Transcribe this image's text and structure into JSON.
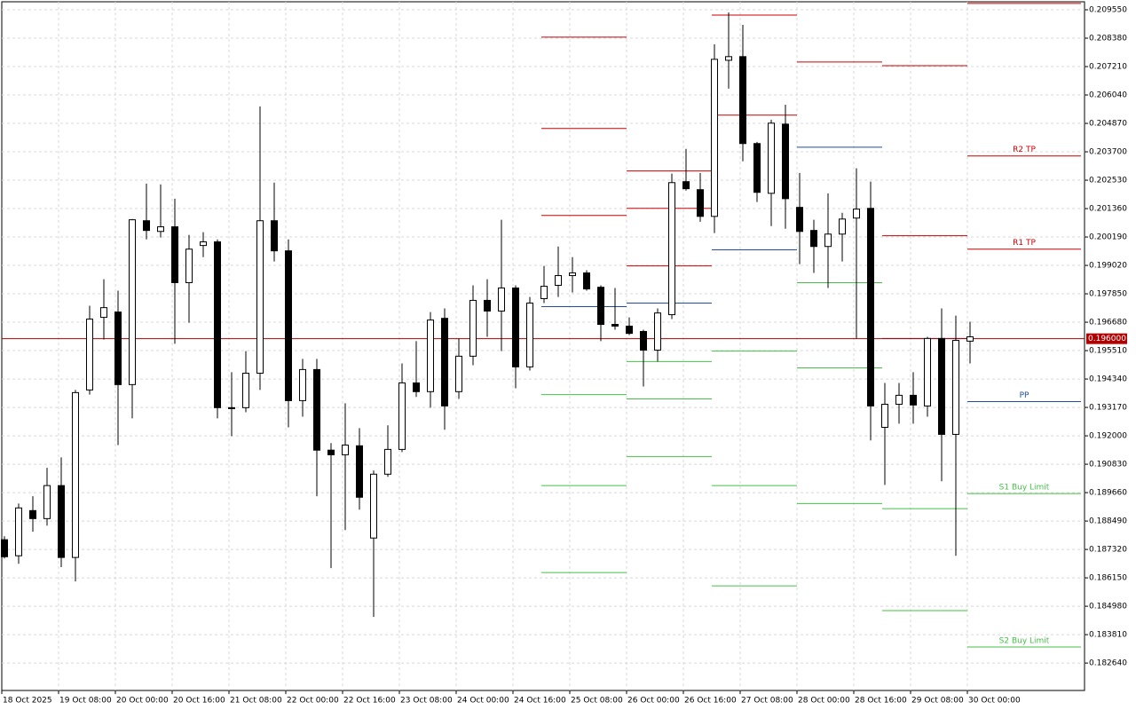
{
  "chart_data": {
    "type": "candlestick",
    "categories": [
      "18 Oct 2025",
      null,
      null,
      null,
      "19 Oct 08:00",
      null,
      null,
      null,
      "20 Oct 00:00",
      null,
      null,
      null,
      "20 Oct 16:00",
      null,
      null,
      null,
      "21 Oct 08:00",
      null,
      null,
      null,
      "22 Oct 00:00",
      null,
      null,
      null,
      "22 Oct 16:00",
      null,
      null,
      null,
      "23 Oct 08:00",
      null,
      null,
      null,
      "24 Oct 00:00",
      null,
      null,
      null,
      "24 Oct 16:00",
      null,
      null,
      null,
      "25 Oct 08:00",
      null,
      null,
      null,
      "26 Oct 00:00",
      null,
      null,
      null,
      "26 Oct 16:00",
      null,
      null,
      null,
      "27 Oct 08:00",
      null,
      null,
      null,
      "28 Oct 00:00",
      null,
      null,
      null,
      "28 Oct 16:00",
      null,
      null,
      null,
      "29 Oct 08:00",
      null,
      null,
      null,
      "30 Oct 00:00"
    ],
    "open": [
      0.18772,
      0.18706,
      0.18892,
      0.18859,
      0.18995,
      0.18699,
      0.19389,
      0.19688,
      0.1971,
      0.19411,
      0.20086,
      0.20042,
      0.20061,
      0.19831,
      0.19984,
      0.19999,
      0.19316,
      0.19316,
      0.19458,
      0.20086,
      0.19962,
      0.19345,
      0.19473,
      0.19141,
      0.19122,
      0.19159,
      0.18779,
      0.19042,
      0.19144,
      0.19418,
      0.19382,
      0.19684,
      0.19382,
      0.19528,
      0.19758,
      0.19714,
      0.19809,
      0.19484,
      0.19765,
      0.1982,
      0.1986,
      0.19871,
      0.19812,
      0.19659,
      0.19652,
      0.1963,
      0.19553,
      0.19699,
      0.20247,
      0.20214,
      0.20104,
      0.20747,
      0.20762,
      0.20404,
      0.20199,
      0.20484,
      0.20141,
      0.20046,
      0.1998,
      0.20031,
      0.20097,
      0.20137,
      0.19235,
      0.1933,
      0.19367,
      0.19323,
      0.19601,
      0.19206,
      0.1959
    ],
    "high": [
      0.18786,
      0.18921,
      0.18951,
      0.19068,
      0.19111,
      0.19389,
      0.19736,
      0.19845,
      0.19798,
      0.20093,
      0.20239,
      0.20236,
      0.20177,
      0.20028,
      0.20039,
      0.20009,
      0.19462,
      0.19549,
      0.20557,
      0.20243,
      0.20009,
      0.19517,
      0.19517,
      0.1917,
      0.19334,
      0.19232,
      0.19057,
      0.19243,
      0.19498,
      0.1959,
      0.1971,
      0.19725,
      0.19601,
      0.1982,
      0.19845,
      0.2009,
      0.1982,
      0.19772,
      0.199,
      0.1998,
      0.19936,
      0.19882,
      0.1982,
      0.19809,
      0.19688,
      0.19637,
      0.19725,
      0.2028,
      0.20382,
      0.20283,
      0.20813,
      0.20944,
      0.20893,
      0.20411,
      0.20502,
      0.20564,
      0.20283,
      0.2009,
      0.20199,
      0.20119,
      0.20302,
      0.20247,
      0.19418,
      0.19418,
      0.19462,
      0.19608,
      0.19725,
      0.19695,
      0.1967
    ],
    "low": [
      0.18695,
      0.18673,
      0.18805,
      0.1883,
      0.18659,
      0.186,
      0.1937,
      0.19597,
      0.19162,
      0.19272,
      0.20009,
      0.20017,
      0.19579,
      0.19666,
      0.19936,
      0.19272,
      0.19199,
      0.19297,
      0.19389,
      0.19918,
      0.19235,
      0.19279,
      0.18951,
      0.18655,
      0.18812,
      0.18896,
      0.18454,
      0.19031,
      0.19133,
      0.1936,
      0.19316,
      0.19225,
      0.19352,
      0.19491,
      0.19608,
      0.19549,
      0.19396,
      0.19469,
      0.19747,
      0.19772,
      0.1979,
      0.19798,
      0.1959,
      0.19637,
      0.19615,
      0.19403,
      0.19506,
      0.19681,
      0.2021,
      0.20082,
      0.20035,
      0.2063,
      0.20331,
      0.20163,
      0.20064,
      0.20053,
      0.19907,
      0.19871,
      0.19809,
      0.19918,
      0.19601,
      0.19181,
      0.18998,
      0.1925,
      0.1925,
      0.19279,
      0.19013,
      0.18706,
      0.19498
    ],
    "close": [
      0.18702,
      0.18903,
      0.18859,
      0.18995,
      0.18699,
      0.19378,
      0.19681,
      0.19728,
      0.19411,
      0.2009,
      0.20046,
      0.20061,
      0.19831,
      0.19969,
      0.19999,
      0.19316,
      0.19312,
      0.19458,
      0.20086,
      0.19962,
      0.19345,
      0.19473,
      0.19141,
      0.19122,
      0.19162,
      0.18947,
      0.19042,
      0.19144,
      0.19418,
      0.19382,
      0.19677,
      0.19323,
      0.19528,
      0.19758,
      0.19714,
      0.19809,
      0.19484,
      0.19747,
      0.19816,
      0.1986,
      0.19871,
      0.19805,
      0.19659,
      0.19652,
      0.19622,
      0.19553,
      0.19706,
      0.20243,
      0.20218,
      0.20104,
      0.20751,
      0.20762,
      0.20404,
      0.20203,
      0.20488,
      0.20177,
      0.20042,
      0.1998,
      0.20031,
      0.20093,
      0.20134,
      0.19323,
      0.1933,
      0.19367,
      0.19327,
      0.19601,
      0.19206,
      0.19593,
      0.19608
    ],
    "up_color": "#ffffff",
    "down_color": "#000000",
    "ylim": [
      0.18151,
      0.20988
    ],
    "yticks": [
      {
        "value": 0.20955,
        "label": "0.209550"
      },
      {
        "value": 0.20838,
        "label": "0.208380"
      },
      {
        "value": 0.20721,
        "label": "0.207210"
      },
      {
        "value": 0.20604,
        "label": "0.206040"
      },
      {
        "value": 0.20487,
        "label": "0.204870"
      },
      {
        "value": 0.2037,
        "label": "0.203700"
      },
      {
        "value": 0.20253,
        "label": "0.202530"
      },
      {
        "value": 0.20136,
        "label": "0.201360"
      },
      {
        "value": 0.20019,
        "label": "0.200190"
      },
      {
        "value": 0.19902,
        "label": "0.199020"
      },
      {
        "value": 0.19785,
        "label": "0.197850"
      },
      {
        "value": 0.19668,
        "label": "0.196680"
      },
      {
        "value": 0.19551,
        "label": "0.195510"
      },
      {
        "value": 0.19434,
        "label": "0.194340"
      },
      {
        "value": 0.19317,
        "label": "0.193170"
      },
      {
        "value": 0.192,
        "label": "0.192000"
      },
      {
        "value": 0.19083,
        "label": "0.190830"
      },
      {
        "value": 0.18966,
        "label": "0.189660"
      },
      {
        "value": 0.18849,
        "label": "0.188490"
      },
      {
        "value": 0.18732,
        "label": "0.187320"
      },
      {
        "value": 0.18615,
        "label": "0.186150"
      },
      {
        "value": 0.18498,
        "label": "0.184980"
      },
      {
        "value": 0.18381,
        "label": "0.183810"
      },
      {
        "value": 0.18264,
        "label": "0.182640"
      }
    ],
    "grid": true,
    "current_price": {
      "value": 0.196,
      "label": "0.196000",
      "color": "#b00000"
    },
    "levels": [
      {
        "lines": [
          {
            "value": 0.20842,
            "color": "#cc0000"
          },
          {
            "value": 0.20466,
            "color": "#cc0000"
          },
          {
            "value": 0.20108,
            "color": "#cc0000"
          },
          {
            "value": 0.19732,
            "color": "#1f4e9c"
          },
          {
            "value": 0.1937,
            "color": "#46c046"
          },
          {
            "value": 0.18995,
            "color": "#46c046"
          },
          {
            "value": 0.18637,
            "color": "#46c046"
          }
        ]
      },
      {
        "lines": [
          {
            "value": 0.20291,
            "color": "#cc0000"
          },
          {
            "value": 0.20137,
            "color": "#cc0000"
          },
          {
            "value": 0.199,
            "color": "#cc0000"
          },
          {
            "value": 0.19747,
            "color": "#1f4e9c"
          },
          {
            "value": 0.19506,
            "color": "#46c046"
          },
          {
            "value": 0.19352,
            "color": "#46c046"
          },
          {
            "value": 0.19115,
            "color": "#46c046"
          }
        ]
      },
      {
        "lines": [
          {
            "value": 0.20933,
            "color": "#cc0000"
          },
          {
            "value": 0.20521,
            "color": "#cc0000"
          },
          {
            "value": 0.19966,
            "color": "#1f4e9c"
          },
          {
            "value": 0.19549,
            "color": "#46c046"
          },
          {
            "value": 0.18995,
            "color": "#46c046"
          },
          {
            "value": 0.18582,
            "color": "#46c046"
          }
        ]
      },
      {
        "lines": [
          {
            "value": 0.2074,
            "color": "#cc0000"
          },
          {
            "value": 0.20389,
            "color": "#1f4e9c"
          },
          {
            "value": 0.19831,
            "color": "#46c046"
          },
          {
            "value": 0.1948,
            "color": "#46c046"
          },
          {
            "value": 0.18921,
            "color": "#46c046"
          }
        ]
      },
      {
        "lines": [
          {
            "value": 0.20725,
            "color": "#cc0000"
          },
          {
            "value": 0.20024,
            "color": "#cc0000"
          },
          {
            "value": 0.19601,
            "color": "#1f4e9c"
          },
          {
            "value": 0.189,
            "color": "#46c046"
          },
          {
            "value": 0.1848,
            "color": "#46c046"
          }
        ]
      },
      {
        "lines": [
          {
            "value": 0.20981,
            "color": "#cc0000"
          },
          {
            "value": 0.20353,
            "color": "#cc0000",
            "label": "R2 TP"
          },
          {
            "value": 0.19969,
            "color": "#cc0000",
            "label": "R1 TP"
          },
          {
            "value": 0.19341,
            "color": "#1f4e9c",
            "label": "PP"
          },
          {
            "value": 0.18962,
            "color": "#46c046",
            "label": "S1 Buy Limit"
          },
          {
            "value": 0.1833,
            "color": "#46c046",
            "label": "S2 Buy Limit"
          }
        ]
      }
    ]
  }
}
